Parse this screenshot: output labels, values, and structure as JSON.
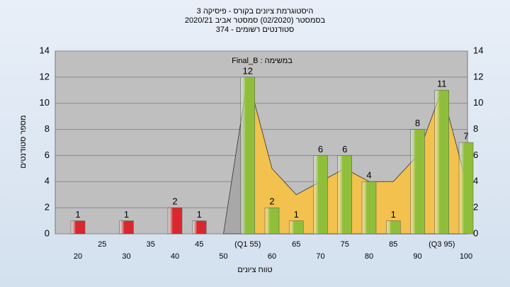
{
  "chart_data": {
    "type": "bar",
    "title": "היסטוגרמת ציונים בקורס - פיסיקה 3",
    "subtitle": "בסמסטר  (02/2020)  סמסטר אביב 2020/21",
    "subtitle2": "סטודנטים רשומים - 374",
    "annotation": "Final_B : במשימה",
    "x_label": "טווח ציונים",
    "y_label": "מספר סטודנטים",
    "categories": [
      "20",
      "25",
      "30",
      "35",
      "40",
      "45",
      "50",
      "(Q1 55)",
      "60",
      "65",
      "70",
      "75",
      "80",
      "85",
      "90",
      "(Q3 95)",
      "100"
    ],
    "values": [
      1,
      0,
      1,
      0,
      2,
      1,
      0,
      12,
      2,
      1,
      6,
      6,
      4,
      1,
      8,
      11,
      7
    ],
    "colors": [
      "#d9272e",
      "#d9272e",
      "#d9272e",
      "#d9272e",
      "#d9272e",
      "#d9272e",
      "#d9272e",
      "#8fbf3a",
      "#8fbf3a",
      "#8fbf3a",
      "#8fbf3a",
      "#8fbf3a",
      "#8fbf3a",
      "#8fbf3a",
      "#8fbf3a",
      "#8fbf3a",
      "#8fbf3a"
    ],
    "trend": [
      null,
      null,
      null,
      null,
      null,
      null,
      0,
      12,
      5,
      3,
      4,
      5,
      4,
      4,
      6,
      11,
      4
    ],
    "trend_colors": [
      "#a8a8a8",
      "#f2c14e"
    ],
    "ylim": [
      0,
      14
    ],
    "yticks": [
      0,
      2,
      4,
      6,
      8,
      10,
      12,
      14
    ],
    "grid": true
  }
}
